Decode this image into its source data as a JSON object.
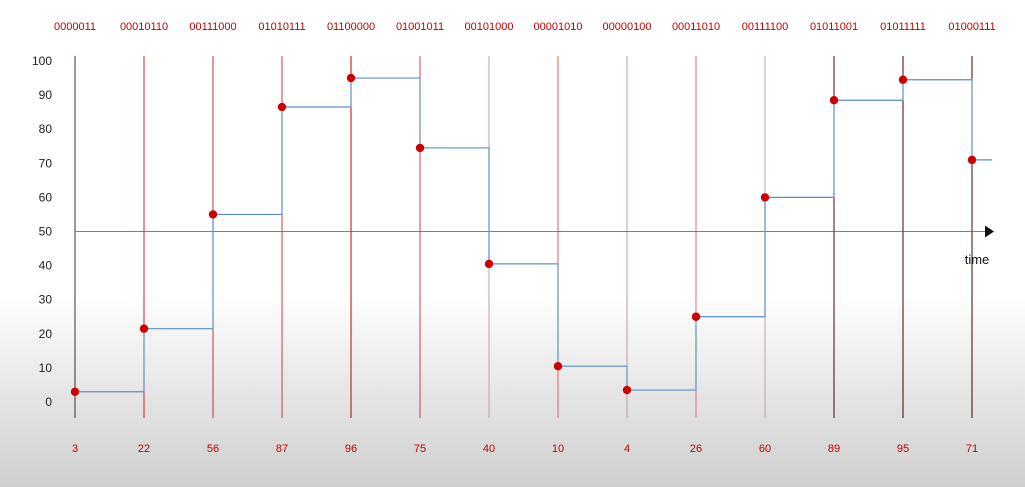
{
  "chart_data": {
    "type": "line",
    "step": true,
    "x": [
      0,
      1,
      2,
      3,
      4,
      5,
      6,
      7,
      8,
      9,
      10,
      11,
      12,
      13
    ],
    "values": [
      3,
      22,
      56,
      87,
      96,
      75,
      40,
      10,
      4,
      26,
      60,
      89,
      95,
      71
    ],
    "points": [
      3,
      21.5,
      55,
      86.5,
      95,
      74.5,
      40.5,
      10.5,
      3.5,
      25,
      60,
      88.5,
      94.5,
      71
    ],
    "binary_labels": [
      "0000011",
      "00010110",
      "00111000",
      "01010111",
      "01100000",
      "01001011",
      "00101000",
      "00001010",
      "00000100",
      "00011010",
      "00111100",
      "01011001",
      "01011111",
      "01000111"
    ],
    "value_labels": [
      "3",
      "22",
      "56",
      "87",
      "96",
      "75",
      "40",
      "10",
      "4",
      "26",
      "60",
      "89",
      "95",
      "71"
    ],
    "ylim": [
      0,
      100
    ],
    "yticks": [
      "0",
      "10",
      "20",
      "30",
      "40",
      "50",
      "60",
      "70",
      "80",
      "90",
      "100"
    ],
    "time_axis_at": 50,
    "xlabel": "time",
    "colors": {
      "point": "#cc0000",
      "step_line": "#5b8fc7",
      "text_accent": "#c00000",
      "sample_lines": [
        "#c00000",
        "#d22020",
        "#c83030",
        "#c84040",
        "#c00000",
        "#d04040",
        "#c0a0a0",
        "#e06060",
        "#b0a0a0",
        "#e07070",
        "#c0a0a0",
        "#5a0000",
        "#4a0000",
        "#4a0000"
      ],
      "axis": "#333333"
    }
  }
}
